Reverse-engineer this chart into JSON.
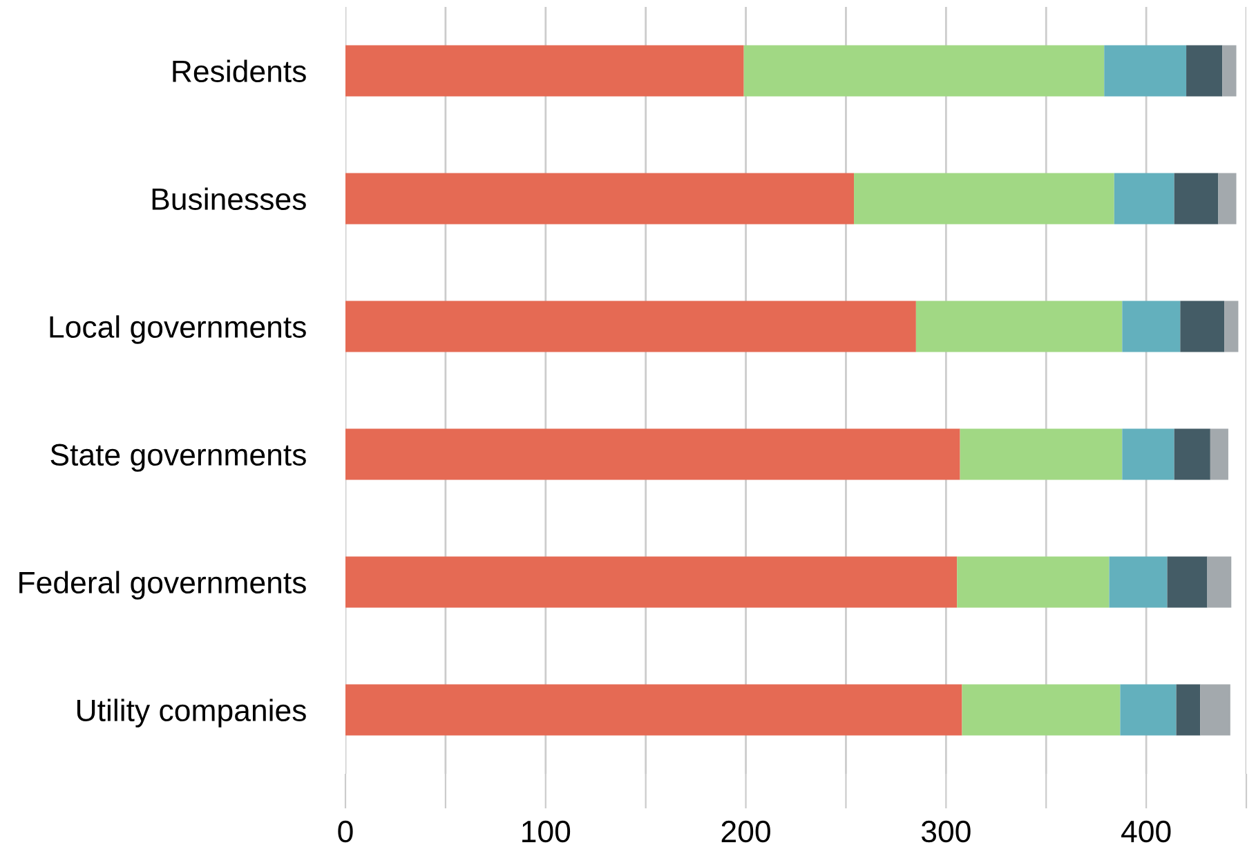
{
  "chart_data": {
    "type": "bar",
    "orientation": "horizontal",
    "stacked": true,
    "categories": [
      "Residents",
      "Businesses",
      "Local governments",
      "State governments",
      "Federal governments",
      "Utility companies"
    ],
    "series": [
      {
        "color": "#e56a54",
        "values": [
          199,
          254,
          285,
          307,
          305.5,
          308
        ]
      },
      {
        "color": "#a1d884",
        "values": [
          180,
          130,
          103,
          81,
          76,
          79
        ]
      },
      {
        "color": "#63b0bd",
        "values": [
          41,
          30,
          29,
          26,
          29,
          28
        ]
      },
      {
        "color": "#445c66",
        "values": [
          18,
          22,
          22,
          18,
          20,
          12
        ]
      },
      {
        "color": "#a3a9ad",
        "values": [
          7,
          9,
          7,
          9,
          12,
          15
        ]
      }
    ],
    "xlim": [
      0,
      450
    ],
    "xticks": [
      0,
      {
        "value": 50,
        "label": null
      },
      100,
      {
        "value": 150,
        "label": null
      },
      200,
      {
        "value": 250,
        "label": null
      },
      300,
      {
        "value": 350,
        "label": null
      },
      400,
      {
        "value": 450,
        "label": null
      }
    ],
    "grid": "x",
    "legend": false
  }
}
